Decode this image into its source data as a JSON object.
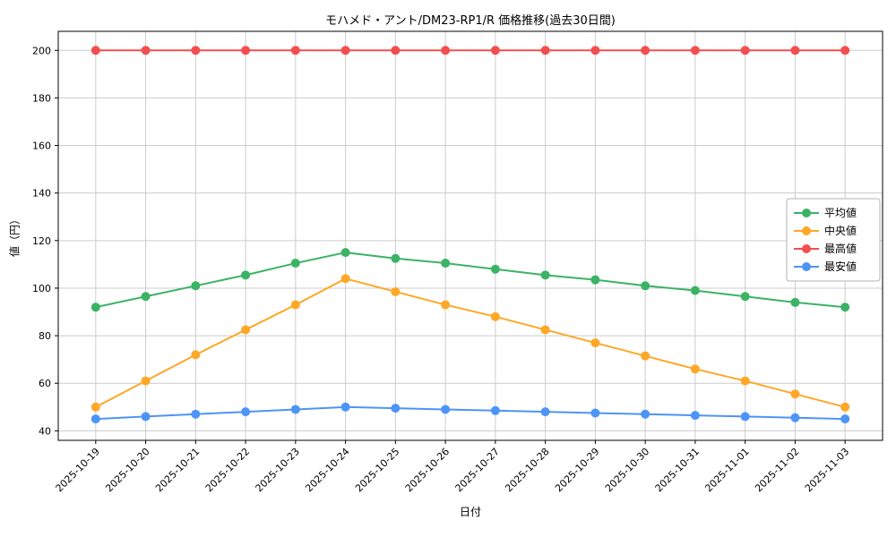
{
  "page": {
    "background": "#ffffff",
    "text_color": "#000000",
    "grid_color": "#cccccc",
    "spine_color": "#000000",
    "legend_border_color": "#b3b3b3"
  },
  "chart_data": {
    "type": "line",
    "title": "モハメド・アント/DM23-RP1/R 価格推移(過去30日間)",
    "xlabel": "日付",
    "ylabel": "値（円）",
    "grid": true,
    "legend_position": "center right",
    "axis": {
      "ylim": [
        36,
        208
      ],
      "yticks": [
        40,
        60,
        80,
        100,
        120,
        140,
        160,
        180,
        200
      ]
    },
    "categories": [
      "2025-10-19",
      "2025-10-20",
      "2025-10-21",
      "2025-10-22",
      "2025-10-23",
      "2025-10-24",
      "2025-10-25",
      "2025-10-26",
      "2025-10-27",
      "2025-10-28",
      "2025-10-29",
      "2025-10-30",
      "2025-10-31",
      "2025-11-01",
      "2025-11-02",
      "2025-11-03"
    ],
    "series": [
      {
        "name": "平均値",
        "color": "#3bb364",
        "values": [
          92,
          96.5,
          101,
          105.5,
          110.5,
          115,
          112.5,
          110.5,
          108,
          105.5,
          103.5,
          101,
          99,
          96.5,
          94,
          92
        ]
      },
      {
        "name": "中央値",
        "color": "#ffa726",
        "values": [
          50,
          61,
          72,
          82.5,
          93,
          104,
          98.5,
          93,
          88,
          82.5,
          77,
          71.5,
          66,
          61,
          55.5,
          50
        ]
      },
      {
        "name": "最高値",
        "color": "#f34e4e",
        "values": [
          200,
          200,
          200,
          200,
          200,
          200,
          200,
          200,
          200,
          200,
          200,
          200,
          200,
          200,
          200,
          200
        ]
      },
      {
        "name": "最安値",
        "color": "#4d94f7",
        "values": [
          45,
          46,
          47,
          48,
          49,
          50,
          49.5,
          49,
          48.5,
          48,
          47.5,
          47,
          46.5,
          46,
          45.5,
          45
        ]
      }
    ]
  }
}
